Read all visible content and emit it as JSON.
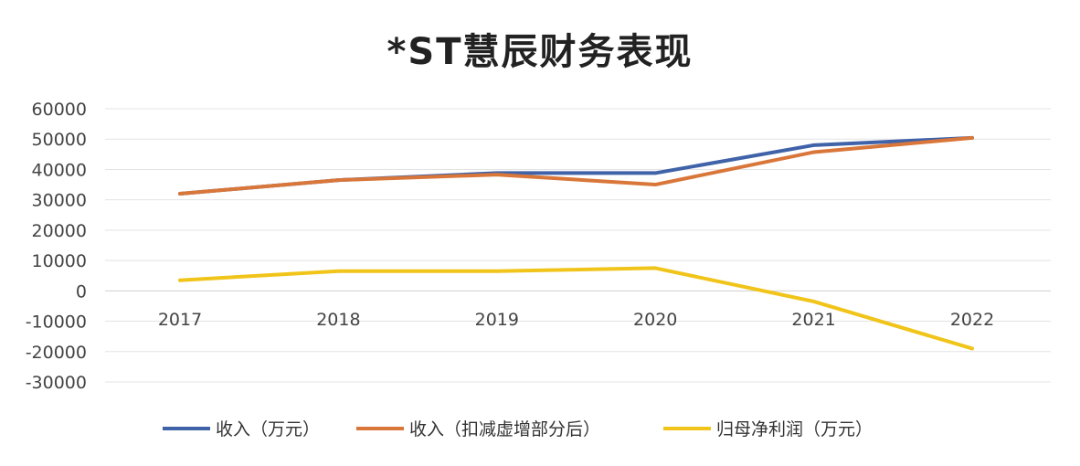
{
  "chart_data": {
    "type": "line",
    "title": "*ST慧辰财务表现",
    "xlabel": "",
    "ylabel": "",
    "categories": [
      "2017",
      "2018",
      "2019",
      "2020",
      "2021",
      "2022"
    ],
    "ylim": [
      -30000,
      60000
    ],
    "yticks": [
      60000,
      50000,
      40000,
      30000,
      20000,
      10000,
      0,
      -10000,
      -20000,
      -30000
    ],
    "grid": true,
    "legend_position": "bottom",
    "series": [
      {
        "name": "收入（万元）",
        "color": "#3f62a8",
        "values": [
          32000,
          36500,
          38800,
          38800,
          48000,
          50400
        ]
      },
      {
        "name": "收入（扣减虚增部分后）",
        "color": "#d9763a",
        "values": [
          32000,
          36500,
          38300,
          35000,
          45700,
          50400
        ]
      },
      {
        "name": "归母净利润（万元）",
        "color": "#f0c419",
        "values": [
          3500,
          6500,
          6500,
          7500,
          -3500,
          -19000
        ]
      }
    ]
  }
}
